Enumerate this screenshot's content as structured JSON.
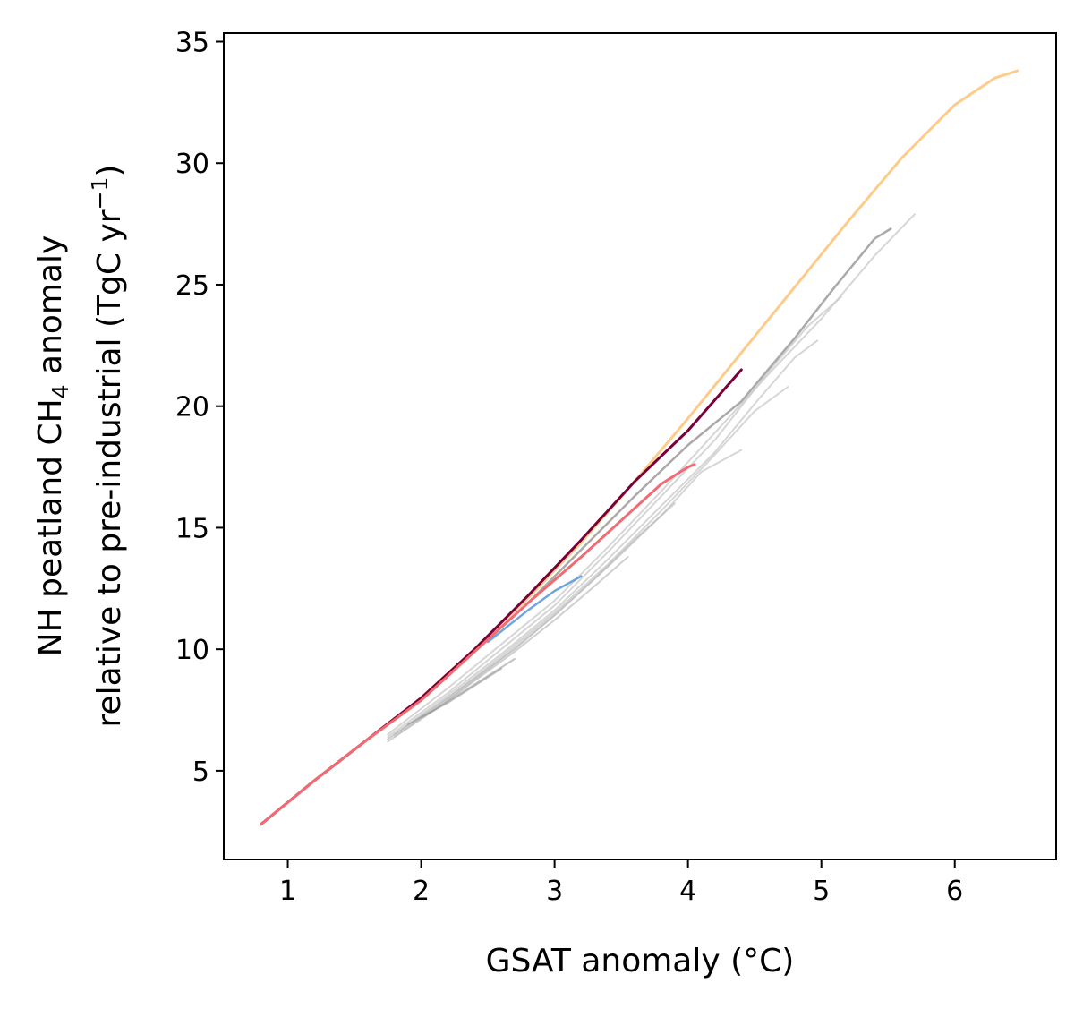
{
  "chart_data": {
    "type": "line",
    "title": "",
    "xlabel": "GSAT anomaly (°C)",
    "ylabel_line1": "NH peatland CH",
    "ylabel_line1_sub": "4",
    "ylabel_line1_rest": " anomaly",
    "ylabel_line2": "relative to pre-industrial (TgC yr",
    "ylabel_line2_sup": "−1",
    "ylabel_line2_rest": ")",
    "xlim": [
      0.52,
      6.76
    ],
    "ylim": [
      1.35,
      35.35
    ],
    "xticks": [
      1,
      2,
      3,
      4,
      5,
      6
    ],
    "xtick_labels": [
      "1",
      "2",
      "3",
      "4",
      "5",
      "6"
    ],
    "yticks": [
      5,
      10,
      15,
      20,
      25,
      30,
      35
    ],
    "ytick_labels": [
      "5",
      "10",
      "15",
      "20",
      "25",
      "30",
      "35"
    ],
    "grid": false,
    "legend": "none",
    "series": [
      {
        "color": "#cccccc",
        "width": 2,
        "opacity": 0.8,
        "x": [
          1.75,
          2.2,
          2.6,
          3.0,
          3.4,
          3.8,
          4.2,
          4.6,
          5.0,
          5.4,
          5.7
        ],
        "y": [
          6.5,
          8.4,
          10.2,
          12.0,
          14.2,
          16.5,
          18.9,
          21.3,
          23.6,
          26.2,
          27.9
        ]
      },
      {
        "color": "#cccccc",
        "width": 2,
        "opacity": 0.8,
        "x": [
          1.75,
          2.2,
          2.6,
          3.0,
          3.4,
          3.8,
          4.2,
          4.6,
          4.9,
          5.15
        ],
        "y": [
          6.4,
          8.2,
          10.0,
          11.8,
          14.0,
          16.3,
          18.6,
          21.4,
          23.3,
          24.5
        ]
      },
      {
        "color": "#cccccc",
        "width": 2,
        "opacity": 0.8,
        "x": [
          1.75,
          2.2,
          2.6,
          3.0,
          3.4,
          3.8,
          4.2,
          4.5,
          4.8,
          4.97
        ],
        "y": [
          6.3,
          8.1,
          9.8,
          11.6,
          13.7,
          15.9,
          18.1,
          20.1,
          22.0,
          22.7
        ]
      },
      {
        "color": "#cccccc",
        "width": 2,
        "opacity": 0.8,
        "x": [
          1.75,
          2.2,
          2.6,
          3.0,
          3.4,
          3.8,
          4.2,
          4.5,
          4.75
        ],
        "y": [
          6.3,
          8.0,
          9.7,
          11.5,
          13.5,
          15.7,
          18.0,
          19.8,
          20.8
        ]
      },
      {
        "color": "#cccccc",
        "width": 2,
        "opacity": 0.8,
        "x": [
          1.75,
          2.2,
          2.6,
          3.0,
          3.4,
          3.8,
          4.1,
          4.4
        ],
        "y": [
          6.2,
          7.9,
          9.6,
          11.4,
          13.4,
          15.5,
          17.3,
          18.2
        ]
      },
      {
        "color": "#bbbbbb",
        "width": 2,
        "opacity": 0.7,
        "x": [
          1.8,
          2.1,
          2.4,
          2.7,
          3.0,
          3.3,
          3.6,
          3.9
        ],
        "y": [
          6.5,
          7.6,
          8.8,
          10.0,
          11.4,
          12.9,
          14.5,
          16.0
        ]
      },
      {
        "color": "#bbbbbb",
        "width": 2,
        "opacity": 0.7,
        "x": [
          1.8,
          2.1,
          2.4,
          2.7,
          3.0,
          3.3,
          3.55
        ],
        "y": [
          6.4,
          7.5,
          8.7,
          9.9,
          11.2,
          12.6,
          13.8
        ]
      },
      {
        "color": "#999999",
        "width": 2,
        "opacity": 0.6,
        "x": [
          1.9,
          2.1,
          2.3,
          2.5,
          2.7
        ],
        "y": [
          6.9,
          7.5,
          8.2,
          8.9,
          9.6
        ]
      },
      {
        "color": "#999999",
        "width": 2,
        "opacity": 0.6,
        "x": [
          2.0,
          2.2,
          2.4,
          2.6
        ],
        "y": [
          7.2,
          7.8,
          8.5,
          9.2
        ]
      },
      {
        "color": "#aaaaaa",
        "width": 2.5,
        "opacity": 1,
        "x": [
          0.8,
          1.2,
          1.6,
          2.0,
          2.4,
          2.8,
          3.2,
          3.6,
          4.0,
          4.4,
          4.8,
          5.1,
          5.4,
          5.52
        ],
        "y": [
          2.8,
          4.6,
          6.3,
          8.0,
          9.9,
          11.9,
          14.1,
          16.3,
          18.4,
          20.2,
          22.8,
          24.9,
          26.9,
          27.3
        ]
      },
      {
        "color": "#4a90d9",
        "width": 2.5,
        "opacity": 0.8,
        "x": [
          2.5,
          2.8,
          3.0,
          3.2
        ],
        "y": [
          10.3,
          11.6,
          12.4,
          13.0
        ]
      },
      {
        "color": "#fdcb8a",
        "width": 3,
        "opacity": 1,
        "x": [
          0.8,
          1.2,
          1.6,
          2.0,
          2.4,
          2.8,
          3.2,
          3.6,
          4.0,
          4.4,
          4.8,
          5.2,
          5.6,
          6.0,
          6.3,
          6.47
        ],
        "y": [
          2.8,
          4.6,
          6.3,
          8.0,
          10.0,
          12.1,
          14.4,
          16.9,
          19.5,
          22.2,
          24.9,
          27.6,
          30.2,
          32.4,
          33.5,
          33.8
        ]
      },
      {
        "color": "#7a0037",
        "width": 3,
        "opacity": 1,
        "x": [
          0.8,
          1.2,
          1.6,
          2.0,
          2.4,
          2.8,
          3.2,
          3.6,
          4.0,
          4.4
        ],
        "y": [
          2.8,
          4.6,
          6.3,
          8.0,
          10.0,
          12.2,
          14.5,
          16.9,
          19.0,
          21.5
        ]
      },
      {
        "color": "#f06b72",
        "width": 3,
        "opacity": 1,
        "x": [
          0.8,
          1.2,
          1.6,
          2.0,
          2.4,
          2.8,
          3.2,
          3.5,
          3.8,
          4.0,
          4.05
        ],
        "y": [
          2.8,
          4.6,
          6.3,
          7.9,
          9.9,
          11.9,
          13.8,
          15.3,
          16.8,
          17.5,
          17.6
        ]
      }
    ]
  }
}
